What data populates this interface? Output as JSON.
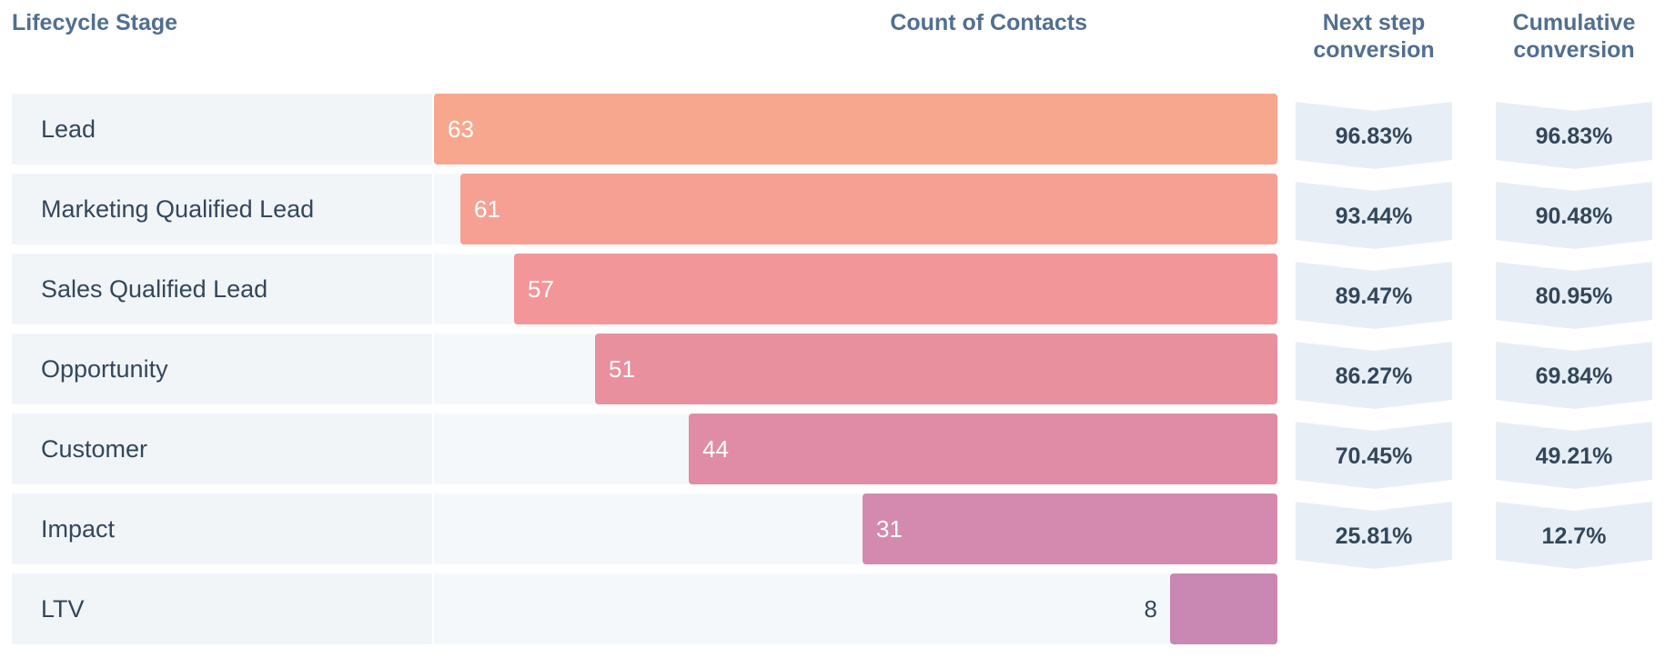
{
  "headers": {
    "stage": "Lifecycle Stage",
    "count": "Count of Contacts",
    "next_step": [
      "Next step",
      "conversion"
    ],
    "cumulative": [
      "Cumulative",
      "conversion"
    ]
  },
  "chart_data": {
    "type": "bar",
    "orientation": "horizontal-funnel",
    "categories": [
      "Lead",
      "Marketing Qualified Lead",
      "Sales Qualified Lead",
      "Opportunity",
      "Customer",
      "Impact",
      "LTV"
    ],
    "values": [
      63,
      61,
      57,
      51,
      44,
      31,
      8
    ],
    "xlim": [
      0,
      63
    ],
    "title": "",
    "xlabel": "Count of Contacts",
    "ylabel": "Lifecycle Stage",
    "grid": false,
    "next_step_conversion": [
      "96.83%",
      "93.44%",
      "89.47%",
      "86.27%",
      "70.45%",
      "25.81%"
    ],
    "cumulative_conversion": [
      "96.83%",
      "90.48%",
      "80.95%",
      "69.84%",
      "49.21%",
      "12.7%"
    ],
    "bar_colors": [
      "#f8a78f",
      "#f6a094",
      "#f29699",
      "#e9909f",
      "#e08ca6",
      "#d48aae",
      "#c987b4"
    ],
    "value_label_color": "#ffffff",
    "outside_label_color": "#33475b",
    "conversion_box_color": "#e8eef6"
  }
}
